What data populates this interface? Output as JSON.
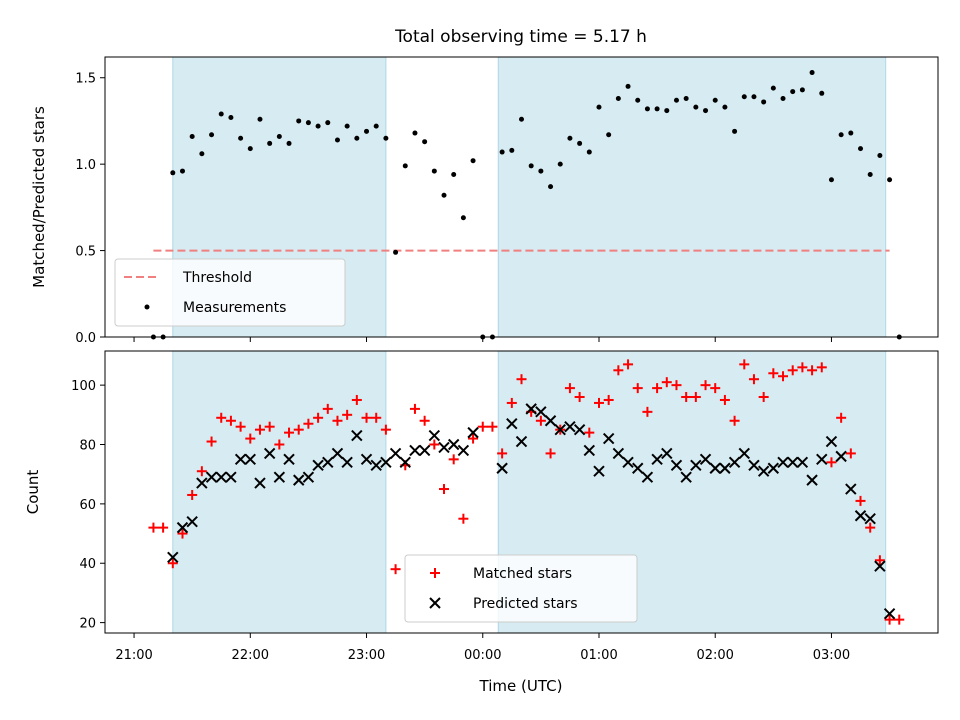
{
  "colors": {
    "shade": "#add8e6",
    "threshold": "#f08080",
    "measurement": "#000000",
    "matched": "#ff0000",
    "predicted": "#000000"
  },
  "chart_data": [
    {
      "type": "scatter",
      "title": "Total observing time = 5.17 h",
      "xlabel": "",
      "ylabel": "Matched/Predicted stars",
      "xlim": [
        "20:45",
        "03:55"
      ],
      "ylim": [
        0,
        1.62
      ],
      "yticks": [
        "0.0",
        "0.5",
        "1.0",
        "1.5"
      ],
      "xticks": [
        "21:00",
        "22:00",
        "23:00",
        "00:00",
        "01:00",
        "02:00",
        "03:00"
      ],
      "legend": "lower-left",
      "shaded_intervals": [
        [
          "21:20",
          "23:10"
        ],
        [
          "00:08",
          "03:28"
        ]
      ],
      "threshold": {
        "name": "Threshold",
        "value": 0.5,
        "x": [
          "21:10",
          "03:30"
        ]
      },
      "series": [
        {
          "name": "Measurements",
          "points": [
            [
              "21:10",
              0
            ],
            [
              "21:15",
              0
            ],
            [
              "21:20",
              0.95
            ],
            [
              "21:25",
              0.96
            ],
            [
              "21:30",
              1.16
            ],
            [
              "21:35",
              1.06
            ],
            [
              "21:40",
              1.17
            ],
            [
              "21:45",
              1.29
            ],
            [
              "21:50",
              1.27
            ],
            [
              "21:55",
              1.15
            ],
            [
              "22:00",
              1.09
            ],
            [
              "22:05",
              1.26
            ],
            [
              "22:10",
              1.12
            ],
            [
              "22:15",
              1.16
            ],
            [
              "22:20",
              1.12
            ],
            [
              "22:25",
              1.25
            ],
            [
              "22:30",
              1.24
            ],
            [
              "22:35",
              1.22
            ],
            [
              "22:40",
              1.24
            ],
            [
              "22:45",
              1.14
            ],
            [
              "22:50",
              1.22
            ],
            [
              "22:55",
              1.15
            ],
            [
              "23:00",
              1.19
            ],
            [
              "23:05",
              1.22
            ],
            [
              "23:10",
              1.15
            ],
            [
              "23:15",
              0.49
            ],
            [
              "23:20",
              0.99
            ],
            [
              "23:25",
              1.18
            ],
            [
              "23:30",
              1.13
            ],
            [
              "23:35",
              0.96
            ],
            [
              "23:40",
              0.82
            ],
            [
              "23:45",
              0.94
            ],
            [
              "23:50",
              0.69
            ],
            [
              "23:55",
              1.02
            ],
            [
              "00:00",
              0
            ],
            [
              "00:05",
              0
            ],
            [
              "00:10",
              1.07
            ],
            [
              "00:15",
              1.08
            ],
            [
              "00:20",
              1.26
            ],
            [
              "00:25",
              0.99
            ],
            [
              "00:30",
              0.96
            ],
            [
              "00:35",
              0.87
            ],
            [
              "00:40",
              1.0
            ],
            [
              "00:45",
              1.15
            ],
            [
              "00:50",
              1.12
            ],
            [
              "00:55",
              1.07
            ],
            [
              "01:00",
              1.33
            ],
            [
              "01:05",
              1.17
            ],
            [
              "01:10",
              1.38
            ],
            [
              "01:15",
              1.45
            ],
            [
              "01:20",
              1.37
            ],
            [
              "01:25",
              1.32
            ],
            [
              "01:30",
              1.32
            ],
            [
              "01:35",
              1.31
            ],
            [
              "01:40",
              1.37
            ],
            [
              "01:45",
              1.38
            ],
            [
              "01:50",
              1.33
            ],
            [
              "01:55",
              1.31
            ],
            [
              "02:00",
              1.37
            ],
            [
              "02:05",
              1.33
            ],
            [
              "02:10",
              1.19
            ],
            [
              "02:15",
              1.39
            ],
            [
              "02:20",
              1.39
            ],
            [
              "02:25",
              1.36
            ],
            [
              "02:30",
              1.44
            ],
            [
              "02:35",
              1.38
            ],
            [
              "02:40",
              1.42
            ],
            [
              "02:45",
              1.43
            ],
            [
              "02:50",
              1.53
            ],
            [
              "02:55",
              1.41
            ],
            [
              "03:00",
              0.91
            ],
            [
              "03:05",
              1.17
            ],
            [
              "03:10",
              1.18
            ],
            [
              "03:15",
              1.09
            ],
            [
              "03:20",
              0.94
            ],
            [
              "03:25",
              1.05
            ],
            [
              "03:30",
              0.91
            ],
            [
              "03:35",
              0
            ]
          ]
        }
      ]
    },
    {
      "type": "scatter",
      "title": "",
      "xlabel": "Time (UTC)",
      "ylabel": "Count",
      "xlim": [
        "20:45",
        "03:55"
      ],
      "ylim": [
        16.5,
        111.5
      ],
      "yticks": [
        "20",
        "40",
        "60",
        "80",
        "100"
      ],
      "xticks": [
        "21:00",
        "22:00",
        "23:00",
        "00:00",
        "01:00",
        "02:00",
        "03:00"
      ],
      "legend": "lower-center",
      "shaded_intervals": [
        [
          "21:20",
          "23:10"
        ],
        [
          "00:08",
          "03:28"
        ]
      ],
      "series": [
        {
          "name": "Matched stars",
          "points": [
            [
              "21:10",
              52
            ],
            [
              "21:15",
              52
            ],
            [
              "21:20",
              40
            ],
            [
              "21:25",
              50
            ],
            [
              "21:30",
              63
            ],
            [
              "21:35",
              71
            ],
            [
              "21:40",
              81
            ],
            [
              "21:45",
              89
            ],
            [
              "21:50",
              88
            ],
            [
              "21:55",
              86
            ],
            [
              "22:00",
              82
            ],
            [
              "22:05",
              85
            ],
            [
              "22:10",
              86
            ],
            [
              "22:15",
              80
            ],
            [
              "22:20",
              84
            ],
            [
              "22:25",
              85
            ],
            [
              "22:30",
              87
            ],
            [
              "22:35",
              89
            ],
            [
              "22:40",
              92
            ],
            [
              "22:45",
              88
            ],
            [
              "22:50",
              90
            ],
            [
              "22:55",
              95
            ],
            [
              "23:00",
              89
            ],
            [
              "23:05",
              89
            ],
            [
              "23:10",
              85
            ],
            [
              "23:15",
              38
            ],
            [
              "23:20",
              73
            ],
            [
              "23:25",
              92
            ],
            [
              "23:30",
              88
            ],
            [
              "23:35",
              80
            ],
            [
              "23:40",
              65
            ],
            [
              "23:45",
              75
            ],
            [
              "23:50",
              55
            ],
            [
              "23:55",
              82
            ],
            [
              "00:00",
              86
            ],
            [
              "00:05",
              86
            ],
            [
              "00:10",
              77
            ],
            [
              "00:15",
              94
            ],
            [
              "00:20",
              102
            ],
            [
              "00:25",
              91
            ],
            [
              "00:30",
              88
            ],
            [
              "00:35",
              77
            ],
            [
              "00:40",
              85
            ],
            [
              "00:45",
              99
            ],
            [
              "00:50",
              96
            ],
            [
              "00:55",
              84
            ],
            [
              "01:00",
              94
            ],
            [
              "01:05",
              95
            ],
            [
              "01:10",
              105
            ],
            [
              "01:15",
              107
            ],
            [
              "01:20",
              99
            ],
            [
              "01:25",
              91
            ],
            [
              "01:30",
              99
            ],
            [
              "01:35",
              101
            ],
            [
              "01:40",
              100
            ],
            [
              "01:45",
              96
            ],
            [
              "01:50",
              96
            ],
            [
              "01:55",
              100
            ],
            [
              "02:00",
              99
            ],
            [
              "02:05",
              95
            ],
            [
              "02:10",
              88
            ],
            [
              "02:15",
              107
            ],
            [
              "02:20",
              102
            ],
            [
              "02:25",
              96
            ],
            [
              "02:30",
              104
            ],
            [
              "02:35",
              103
            ],
            [
              "02:40",
              105
            ],
            [
              "02:45",
              106
            ],
            [
              "02:50",
              105
            ],
            [
              "02:55",
              106
            ],
            [
              "03:00",
              74
            ],
            [
              "03:05",
              89
            ],
            [
              "03:10",
              77
            ],
            [
              "03:15",
              61
            ],
            [
              "03:20",
              52
            ],
            [
              "03:25",
              41
            ],
            [
              "03:30",
              21
            ],
            [
              "03:35",
              21
            ]
          ]
        },
        {
          "name": "Predicted stars",
          "points": [
            [
              "21:20",
              42
            ],
            [
              "21:25",
              52
            ],
            [
              "21:30",
              54
            ],
            [
              "21:35",
              67
            ],
            [
              "21:40",
              69
            ],
            [
              "21:45",
              69
            ],
            [
              "21:50",
              69
            ],
            [
              "21:55",
              75
            ],
            [
              "22:00",
              75
            ],
            [
              "22:05",
              67
            ],
            [
              "22:10",
              77
            ],
            [
              "22:15",
              69
            ],
            [
              "22:20",
              75
            ],
            [
              "22:25",
              68
            ],
            [
              "22:30",
              69
            ],
            [
              "22:35",
              73
            ],
            [
              "22:40",
              74
            ],
            [
              "22:45",
              77
            ],
            [
              "22:50",
              74
            ],
            [
              "22:55",
              83
            ],
            [
              "23:00",
              75
            ],
            [
              "23:05",
              73
            ],
            [
              "23:10",
              74
            ],
            [
              "23:15",
              77
            ],
            [
              "23:20",
              74
            ],
            [
              "23:25",
              78
            ],
            [
              "23:30",
              78
            ],
            [
              "23:35",
              83
            ],
            [
              "23:40",
              79
            ],
            [
              "23:45",
              80
            ],
            [
              "23:50",
              78
            ],
            [
              "23:55",
              84
            ],
            [
              "00:10",
              72
            ],
            [
              "00:15",
              87
            ],
            [
              "00:20",
              81
            ],
            [
              "00:25",
              92
            ],
            [
              "00:30",
              91
            ],
            [
              "00:35",
              88
            ],
            [
              "00:40",
              85
            ],
            [
              "00:45",
              86
            ],
            [
              "00:50",
              85
            ],
            [
              "00:55",
              78
            ],
            [
              "01:00",
              71
            ],
            [
              "01:05",
              82
            ],
            [
              "01:10",
              77
            ],
            [
              "01:15",
              74
            ],
            [
              "01:20",
              72
            ],
            [
              "01:25",
              69
            ],
            [
              "01:30",
              75
            ],
            [
              "01:35",
              77
            ],
            [
              "01:40",
              73
            ],
            [
              "01:45",
              69
            ],
            [
              "01:50",
              73
            ],
            [
              "01:55",
              75
            ],
            [
              "02:00",
              72
            ],
            [
              "02:05",
              72
            ],
            [
              "02:10",
              74
            ],
            [
              "02:15",
              77
            ],
            [
              "02:20",
              73
            ],
            [
              "02:25",
              71
            ],
            [
              "02:30",
              72
            ],
            [
              "02:35",
              74
            ],
            [
              "02:40",
              74
            ],
            [
              "02:45",
              74
            ],
            [
              "02:50",
              68
            ],
            [
              "02:55",
              75
            ],
            [
              "03:00",
              81
            ],
            [
              "03:05",
              76
            ],
            [
              "03:10",
              65
            ],
            [
              "03:15",
              56
            ],
            [
              "03:20",
              55
            ],
            [
              "03:25",
              39
            ],
            [
              "03:30",
              23
            ]
          ]
        }
      ]
    }
  ]
}
